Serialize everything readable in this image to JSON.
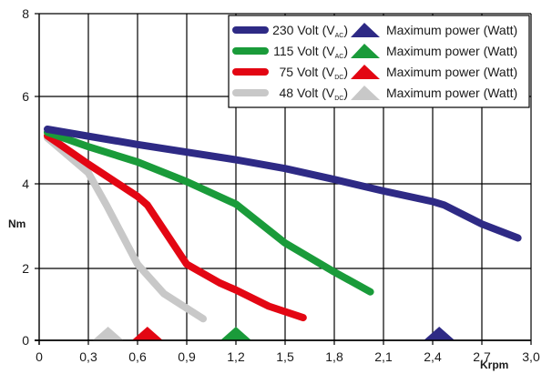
{
  "chart_data": {
    "type": "line",
    "title": "",
    "xlabel": "Krpm",
    "ylabel": "Nm",
    "xlim": [
      0,
      3.0
    ],
    "ylim": [
      0,
      8
    ],
    "grid": true,
    "legend_position": "top-right",
    "x_ticks": [
      "0",
      "0,3",
      "0,6",
      "0,9",
      "1,2",
      "1,5",
      "1,8",
      "2,1",
      "2,4",
      "2,7",
      "3,0"
    ],
    "x_tick_values": [
      0,
      0.3,
      0.6,
      0.9,
      1.2,
      1.5,
      1.8,
      2.1,
      2.4,
      2.7,
      3.0
    ],
    "y_ticks": [
      "0",
      "2",
      "4",
      "6",
      "8"
    ],
    "y_tick_values": [
      0,
      2,
      4,
      6,
      8
    ],
    "series": [
      {
        "name": "230 Volt (VAC)",
        "voltage": "230 Volt (V",
        "subscript": "AC",
        "color": "#2e2a85",
        "x": [
          0.05,
          0.6,
          1.2,
          1.5,
          1.8,
          2.1,
          2.4,
          2.47,
          2.7,
          2.92
        ],
        "y": [
          5.25,
          4.9,
          4.55,
          4.35,
          4.1,
          3.83,
          3.58,
          3.5,
          3.05,
          2.72
        ],
        "max_power_krpm": 2.44,
        "max_power_label": "Maximum power (Watt)"
      },
      {
        "name": "115 Volt (VAC)",
        "voltage": "115 Volt (V",
        "subscript": "AC",
        "color": "#1a9b3a",
        "x": [
          0.05,
          0.3,
          0.6,
          0.9,
          1.2,
          1.5,
          1.8,
          2.02
        ],
        "y": [
          5.18,
          4.85,
          4.5,
          4.05,
          3.52,
          2.6,
          1.9,
          1.35
        ],
        "max_power_krpm": 1.2,
        "max_power_label": "Maximum power (Watt)"
      },
      {
        "name": "75 Volt (VDC)",
        "voltage": "75 Volt (V",
        "subscript": "DC",
        "color": "#e30613",
        "x": [
          0.05,
          0.3,
          0.6,
          0.66,
          0.9,
          1.1,
          1.2,
          1.4,
          1.61
        ],
        "y": [
          5.1,
          4.45,
          3.7,
          3.5,
          2.1,
          1.6,
          1.4,
          0.95,
          0.63
        ],
        "max_power_krpm": 0.66,
        "max_power_label": "Maximum power (Watt)"
      },
      {
        "name": "48 Volt (VDC)",
        "voltage": "48 Volt (V",
        "subscript": "DC",
        "color": "#c8c8c8",
        "x": [
          0.05,
          0.3,
          0.41,
          0.6,
          0.76,
          1.0
        ],
        "y": [
          5.05,
          4.25,
          3.5,
          2.1,
          1.3,
          0.6
        ],
        "max_power_krpm": 0.42,
        "max_power_label": "Maximum power (Watt)"
      }
    ]
  }
}
